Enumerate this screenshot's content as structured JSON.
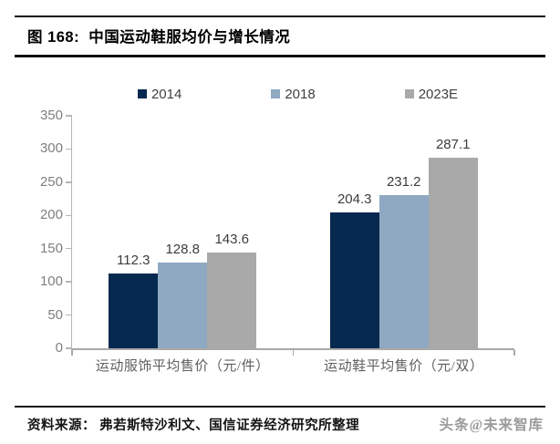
{
  "header": {
    "title": "图 168:  中国运动鞋服均价与增长情况"
  },
  "chart_data": {
    "type": "bar",
    "title": "中国运动鞋服均价与增长情况",
    "categories": [
      "运动服饰平均售价（元/件）",
      "运动鞋平均售价（元/双）"
    ],
    "series": [
      {
        "name": "2014",
        "color": "#05294f",
        "values": [
          112.3,
          204.3
        ]
      },
      {
        "name": "2018",
        "color": "#8ea9c1",
        "values": [
          128.8,
          231.2
        ]
      },
      {
        "name": "2023E",
        "color": "#a9a9a9",
        "values": [
          143.6,
          287.1
        ]
      }
    ],
    "ylim": [
      0,
      350
    ],
    "yticks": [
      0,
      50,
      100,
      150,
      200,
      250,
      300,
      350
    ],
    "grid": false,
    "legend_position": "top",
    "value_labels": true,
    "xlabel": "",
    "ylabel": ""
  },
  "footer": {
    "source": "资料来源： 弗若斯特沙利文、国信证券经济研究所整理",
    "watermark": "头条@未来智库"
  }
}
